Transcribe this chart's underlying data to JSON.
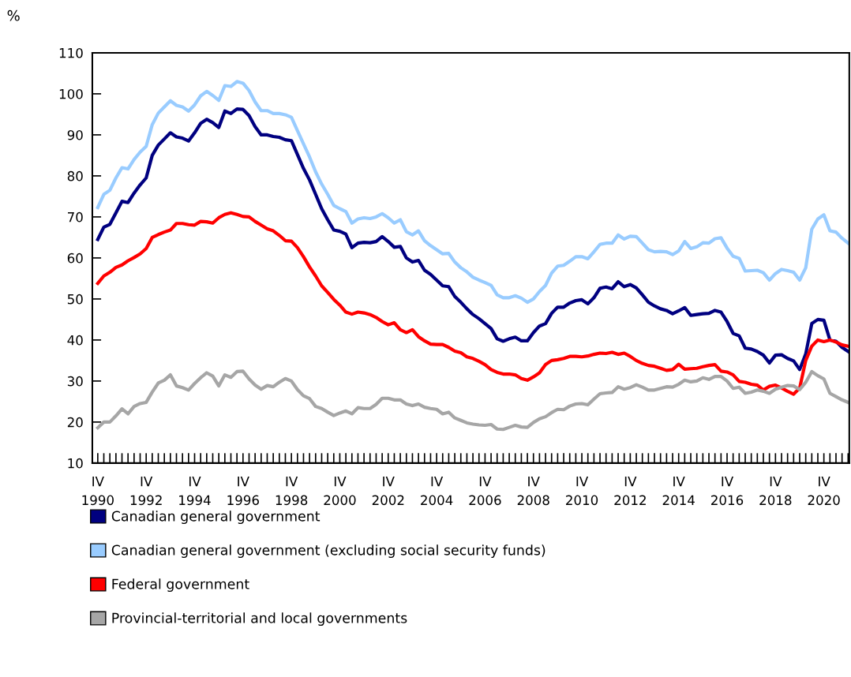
{
  "chart_data": {
    "type": "line",
    "ylabel": "%",
    "categories": [
      "IV\n1990",
      null,
      null,
      null,
      null,
      null,
      null,
      null,
      "IV\n1992",
      null,
      null,
      null,
      null,
      null,
      null,
      null,
      "IV\n1994",
      null,
      null,
      null,
      null,
      null,
      null,
      null,
      "IV\n1996",
      null,
      null,
      null,
      null,
      null,
      null,
      null,
      "IV\n1998",
      null,
      null,
      null,
      null,
      null,
      null,
      null,
      "IV\n2000",
      null,
      null,
      null,
      null,
      null,
      null,
      null,
      "IV\n2002",
      null,
      null,
      null,
      null,
      null,
      null,
      null,
      "IV\n2004",
      null,
      null,
      null,
      null,
      null,
      null,
      null,
      "IV\n2006",
      null,
      null,
      null,
      null,
      null,
      null,
      null,
      "IV\n2008",
      null,
      null,
      null,
      null,
      null,
      null,
      null,
      "IV\n2010",
      null,
      null,
      null,
      null,
      null,
      null,
      null,
      "IV\n2012",
      null,
      null,
      null,
      null,
      null,
      null,
      null,
      "IV\n2014",
      null,
      null,
      null,
      null,
      null,
      null,
      null,
      "IV\n2016",
      null,
      null,
      null,
      null,
      null,
      null,
      null,
      "IV\n2018",
      null,
      null,
      null,
      null,
      null,
      null,
      null,
      "IV\n2020",
      null,
      null,
      null,
      null
    ],
    "series": [
      {
        "name": "Canadian general government",
        "color": "#000080",
        "values": [
          64.5,
          67.5,
          68.2,
          71,
          73.8,
          73.5,
          75.8,
          77.8,
          79.5,
          85,
          87.5,
          89,
          90.5,
          89.5,
          89.2,
          88.5,
          90.5,
          92.8,
          93.8,
          93,
          91.8,
          95.8,
          95.2,
          96.3,
          96.2,
          94.7,
          92,
          90,
          90,
          89.6,
          89.4,
          88.8,
          88.6,
          85.2,
          81.8,
          79,
          75.5,
          72,
          69.3,
          66.8,
          66.5,
          65.8,
          62.5,
          63.6,
          63.8,
          63.7,
          64,
          65.2,
          64,
          62.6,
          62.8,
          60,
          59,
          59.4,
          57,
          56,
          54.6,
          53.2,
          53,
          50.6,
          49.2,
          47.6,
          46.2,
          45.2,
          44,
          42.8,
          40.3,
          39.7,
          40.3,
          40.7,
          39.8,
          39.8,
          41.8,
          43.4,
          44,
          46.5,
          48,
          48,
          49,
          49.6,
          49.8,
          48.8,
          50.3,
          52.6,
          52.9,
          52.5,
          54.2,
          53,
          53.5,
          52.7,
          51,
          49.2,
          48.3,
          47.6,
          47.2,
          46.4,
          47.1,
          47.9,
          46,
          46.2,
          46.4,
          46.5,
          47.2,
          46.8,
          44.5,
          41.6,
          41,
          38,
          37.8,
          37.2,
          36.3,
          34.4,
          36.3,
          36.4,
          35.5,
          34.9,
          32.8,
          36.6,
          44,
          45,
          44.8,
          40,
          39.7,
          38.2,
          37.2
        ]
      },
      {
        "name": "Canadian general government (excluding social security funds)",
        "color": "#99ccff",
        "values": [
          72.3,
          75.5,
          76.5,
          79.5,
          82,
          81.7,
          84,
          85.8,
          87.2,
          92.5,
          95.3,
          96.8,
          98.3,
          97.2,
          96.8,
          95.8,
          97.3,
          99.5,
          100.6,
          99.6,
          98.4,
          102,
          101.8,
          103,
          102.6,
          100.8,
          98,
          95.9,
          95.9,
          95.2,
          95.2,
          94.9,
          94.3,
          91,
          87.8,
          84.6,
          81,
          78,
          75.5,
          72.8,
          72,
          71.3,
          68.5,
          69.5,
          69.8,
          69.6,
          70,
          70.8,
          69.8,
          68.5,
          69.3,
          66.4,
          65.6,
          66.6,
          64.2,
          63,
          62,
          61,
          61.1,
          59,
          57.6,
          56.6,
          55.3,
          54.6,
          54,
          53.3,
          51,
          50.3,
          50.3,
          50.8,
          50.2,
          49.2,
          50,
          51.8,
          53.3,
          56.3,
          58,
          58.2,
          59.2,
          60.3,
          60.3,
          59.8,
          61.5,
          63.3,
          63.6,
          63.6,
          65.6,
          64.6,
          65.3,
          65.2,
          63.6,
          62,
          61.5,
          61.6,
          61.5,
          60.8,
          61.7,
          64,
          62.3,
          62.7,
          63.7,
          63.6,
          64.7,
          64.9,
          62.4,
          60.4,
          59.9,
          56.8,
          56.9,
          57,
          56.4,
          54.6,
          56.2,
          57.2,
          56.9,
          56.5,
          54.6,
          57.6,
          67,
          69.5,
          70.5,
          66.6,
          66.3,
          64.8,
          63.6
        ]
      },
      {
        "name": "Federal government",
        "color": "#ff0000",
        "values": [
          53.8,
          55.6,
          56.5,
          57.7,
          58.3,
          59.3,
          60.1,
          61,
          62.3,
          65,
          65.7,
          66.3,
          66.8,
          68.4,
          68.4,
          68.1,
          68,
          68.9,
          68.8,
          68.5,
          69.8,
          70.6,
          71,
          70.6,
          70.1,
          70,
          68.9,
          68,
          67.1,
          66.6,
          65.5,
          64.2,
          64.1,
          62.5,
          60.3,
          57.8,
          55.6,
          53.2,
          51.6,
          49.9,
          48.5,
          46.8,
          46.3,
          46.8,
          46.6,
          46.2,
          45.5,
          44.5,
          43.7,
          44.2,
          42.5,
          41.8,
          42.5,
          40.8,
          39.8,
          39,
          38.9,
          38.9,
          38.2,
          37.3,
          36.9,
          35.9,
          35.5,
          34.8,
          34,
          32.8,
          32.1,
          31.7,
          31.7,
          31.5,
          30.6,
          30.2,
          31,
          32,
          34,
          35,
          35.2,
          35.5,
          36,
          36,
          35.9,
          36.1,
          36.5,
          36.8,
          36.7,
          37,
          36.5,
          36.8,
          36,
          35,
          34.3,
          33.8,
          33.6,
          33.1,
          32.6,
          32.8,
          34.1,
          32.9,
          33,
          33.1,
          33.5,
          33.8,
          34,
          32.4,
          32.2,
          31.5,
          29.9,
          29.7,
          29.2,
          29,
          27.8,
          28.7,
          29,
          28.3,
          27.5,
          26.8,
          28.3,
          35,
          38.5,
          40,
          39.6,
          40,
          39.5,
          38.8,
          38.5
        ]
      },
      {
        "name": "Provincial-territorial and local governments",
        "color": "#a6a6a6",
        "values": [
          18.6,
          20,
          20,
          21.5,
          23.2,
          22,
          23.8,
          24.5,
          24.8,
          27.3,
          29.5,
          30.2,
          31.5,
          28.8,
          28.4,
          27.8,
          29.4,
          30.8,
          32,
          31.2,
          28.8,
          31.5,
          30.9,
          32.3,
          32.4,
          30.5,
          29,
          28,
          28.9,
          28.6,
          29.7,
          30.6,
          30,
          27.9,
          26.4,
          25.7,
          23.8,
          23.3,
          22.4,
          21.6,
          22.2,
          22.7,
          22,
          23.5,
          23.3,
          23.3,
          24.3,
          25.8,
          25.8,
          25.4,
          25.4,
          24.4,
          24,
          24.4,
          23.6,
          23.3,
          23.1,
          22,
          22.4,
          21,
          20.4,
          19.8,
          19.5,
          19.3,
          19.2,
          19.4,
          18.3,
          18.2,
          18.7,
          19.2,
          18.8,
          18.7,
          19.9,
          20.8,
          21.3,
          22.3,
          23.1,
          23,
          23.9,
          24.4,
          24.5,
          24.2,
          25.6,
          26.9,
          27.1,
          27.2,
          28.6,
          28,
          28.4,
          29.1,
          28.5,
          27.8,
          27.8,
          28.2,
          28.6,
          28.5,
          29.2,
          30.2,
          29.8,
          30,
          30.8,
          30.4,
          31.1,
          31.1,
          30,
          28.2,
          28.5,
          27,
          27.3,
          27.8,
          27.5,
          27,
          28,
          28.5,
          28.9,
          28.8,
          27.9,
          29.7,
          32.3,
          31.3,
          30.5,
          27,
          26.2,
          25.4,
          24.8
        ]
      }
    ],
    "ylim": [
      10,
      110
    ],
    "yticks": [
      10,
      20,
      30,
      40,
      50,
      60,
      70,
      80,
      90,
      100,
      110
    ],
    "grid": false,
    "legend": "bottom",
    "marker": "none",
    "line_style": "solid"
  }
}
